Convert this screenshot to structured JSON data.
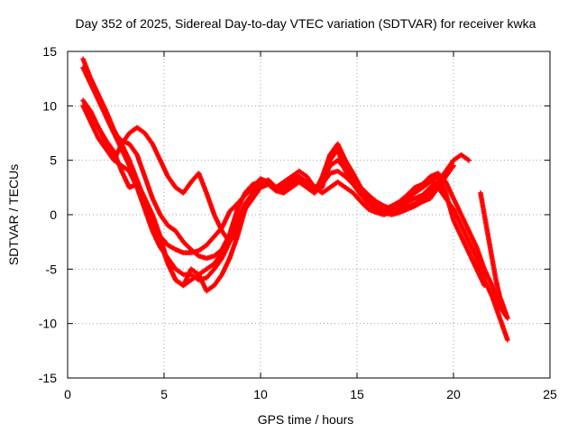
{
  "chart_data": {
    "type": "scatter",
    "title": "Day 352 of 2025, Sidereal Day-to-day VTEC variation (SDTVAR) for receiver kwka",
    "xlabel": "GPS time / hours",
    "ylabel": "SDTVAR / TECUs",
    "xlim": [
      0,
      25
    ],
    "ylim": [
      -15,
      15
    ],
    "xticks": [
      0,
      5,
      10,
      15,
      20,
      25
    ],
    "yticks": [
      -15,
      -10,
      -5,
      0,
      5,
      10,
      15
    ],
    "grid": true,
    "marker": "plus",
    "color": "#ff0000",
    "series": [
      {
        "x": [
          0.8,
          1.2,
          1.6,
          2.0,
          2.4,
          2.8,
          3.2,
          3.6,
          4.0,
          4.4,
          4.8,
          5.2,
          5.6,
          6.0,
          6.4,
          6.8,
          7.2,
          7.6,
          8.0,
          8.4,
          8.8,
          9.2,
          9.6,
          10.0,
          10.4,
          10.8,
          11.2,
          11.6,
          12.0,
          12.4,
          12.8,
          13.2,
          13.6,
          14.0,
          14.4,
          14.8,
          15.2,
          15.6,
          16.0,
          16.4,
          16.8,
          17.2,
          17.6,
          18.0,
          18.4,
          18.8,
          19.2,
          19.6,
          20.0,
          20.4,
          20.8
        ],
        "y": [
          14.3,
          12.5,
          11.0,
          9.5,
          7.8,
          6.5,
          5.0,
          3.2,
          1.2,
          -0.5,
          -2.0,
          -2.8,
          -3.2,
          -3.5,
          -3.5,
          -3.3,
          -2.8,
          -2.0,
          -1.2,
          0.3,
          1.0,
          1.8,
          2.5,
          3.3,
          3.0,
          2.5,
          3.0,
          3.5,
          4.0,
          3.5,
          2.5,
          2.0,
          2.5,
          3.0,
          2.5,
          2.0,
          1.2,
          0.5,
          0.2,
          0.0,
          0.3,
          0.5,
          0.8,
          1.0,
          1.5,
          2.0,
          3.0,
          4.0,
          5.0,
          5.5,
          5.0
        ]
      },
      {
        "x": [
          0.8,
          1.2,
          1.6,
          2.0,
          2.4,
          2.8,
          3.2,
          3.6,
          4.0,
          4.4,
          4.8,
          5.2,
          5.6,
          6.0,
          6.4,
          6.8,
          7.2,
          7.6,
          8.0,
          8.4,
          8.8,
          9.2,
          9.6,
          10.0,
          10.4,
          10.8,
          11.2,
          11.6,
          12.0,
          12.4,
          12.8,
          13.2,
          13.6,
          14.0,
          14.4,
          14.8,
          15.2,
          15.6,
          16.0,
          16.4,
          16.8,
          17.2,
          17.6,
          18.0,
          18.4,
          18.8,
          19.2,
          19.6,
          20.0
        ],
        "y": [
          13.5,
          12.0,
          10.5,
          9.0,
          7.5,
          6.8,
          6.5,
          5.5,
          3.5,
          1.5,
          0.0,
          -1.0,
          -1.5,
          -2.5,
          -3.2,
          -3.8,
          -4.0,
          -3.8,
          -3.2,
          -1.8,
          0.5,
          2.0,
          2.8,
          3.0,
          2.8,
          2.2,
          2.5,
          3.2,
          3.5,
          2.8,
          2.2,
          2.8,
          3.8,
          4.0,
          3.5,
          2.8,
          1.8,
          1.0,
          0.5,
          0.2,
          0.0,
          0.2,
          0.5,
          0.8,
          1.2,
          1.5,
          2.5,
          3.5,
          4.5
        ]
      },
      {
        "x": [
          0.8,
          1.2,
          1.6,
          2.0,
          2.4,
          2.8,
          3.2,
          3.6,
          4.0,
          4.4,
          4.8,
          5.2,
          5.6,
          6.0,
          6.4,
          6.8,
          7.2,
          7.6,
          8.0,
          8.4,
          8.8,
          9.2,
          9.6,
          10.0,
          10.4,
          10.8,
          11.2,
          11.6,
          12.0,
          12.4,
          12.8,
          13.2,
          13.6,
          14.0,
          14.4,
          14.8,
          15.2,
          15.6,
          16.0,
          16.4,
          16.8,
          17.2,
          17.6,
          18.0,
          18.4,
          18.8,
          19.2
        ],
        "y": [
          10.5,
          9.5,
          8.0,
          6.5,
          5.0,
          6.5,
          7.5,
          8.0,
          7.5,
          6.5,
          5.0,
          3.5,
          2.5,
          2.0,
          3.0,
          3.8,
          2.0,
          0.0,
          -1.5,
          -2.5,
          -1.5,
          0.5,
          2.0,
          2.8,
          3.2,
          2.5,
          2.0,
          2.8,
          3.5,
          3.0,
          2.2,
          2.5,
          5.5,
          6.5,
          5.0,
          3.8,
          2.5,
          1.8,
          1.2,
          0.8,
          0.5,
          0.8,
          1.2,
          1.5,
          1.8,
          2.5,
          3.0
        ]
      },
      {
        "x": [
          0.8,
          1.2,
          1.6,
          2.0,
          2.4,
          2.8,
          3.2,
          3.6,
          4.0,
          4.4,
          4.8,
          5.2,
          5.6,
          6.0,
          6.4,
          6.8,
          7.2,
          7.6,
          8.0,
          8.4,
          8.8,
          9.2,
          9.6,
          10.0,
          10.4,
          10.8,
          11.2,
          11.6,
          12.0,
          12.4,
          12.8,
          13.2,
          13.6,
          14.0,
          14.4,
          14.8,
          15.2,
          15.6,
          16.0,
          16.4,
          16.8,
          17.2,
          17.6,
          18.0,
          18.4,
          18.8,
          19.2,
          19.6,
          20.0,
          20.4,
          20.8,
          21.2,
          21.6
        ],
        "y": [
          10.0,
          8.5,
          7.0,
          6.0,
          5.0,
          4.5,
          4.0,
          2.5,
          0.5,
          -1.5,
          -3.0,
          -4.0,
          -5.0,
          -5.5,
          -5.5,
          -6.0,
          -5.8,
          -5.0,
          -4.0,
          -2.5,
          -1.0,
          0.5,
          1.5,
          2.5,
          2.8,
          2.2,
          2.0,
          2.5,
          3.0,
          2.5,
          2.0,
          3.0,
          5.0,
          6.0,
          4.5,
          3.5,
          2.5,
          1.5,
          0.8,
          0.5,
          0.5,
          1.0,
          1.5,
          2.0,
          2.5,
          3.0,
          3.5,
          2.0,
          -0.5,
          -2.0,
          -3.5,
          -5.0,
          -6.5
        ]
      },
      {
        "x": [
          0.8,
          1.2,
          1.6,
          2.0,
          2.4,
          2.8,
          3.2,
          3.6,
          4.0,
          4.4,
          4.8,
          5.2,
          5.6,
          6.0,
          6.4,
          6.8,
          7.2,
          7.6,
          8.0,
          8.4,
          8.8,
          9.2,
          9.6,
          10.0,
          10.4,
          10.8,
          11.2,
          11.6,
          12.0,
          12.4,
          12.8,
          13.2,
          13.6,
          14.0,
          14.4,
          14.8,
          15.2,
          15.6,
          16.0,
          16.4,
          16.8,
          17.2,
          17.6,
          18.0,
          18.4,
          18.8,
          19.2,
          19.6,
          20.0,
          20.4,
          20.8,
          21.2,
          21.6,
          22.0,
          22.4,
          22.8
        ],
        "y": [
          10.0,
          9.0,
          8.0,
          6.8,
          5.8,
          4.0,
          2.5,
          2.8,
          1.5,
          -0.5,
          -2.5,
          -4.5,
          -6.0,
          -6.5,
          -6.0,
          -5.5,
          -5.0,
          -4.5,
          -3.5,
          -2.0,
          -0.5,
          1.0,
          2.0,
          2.8,
          3.0,
          2.5,
          2.5,
          3.0,
          3.2,
          2.5,
          2.0,
          3.5,
          5.5,
          6.0,
          4.0,
          3.0,
          2.0,
          1.2,
          0.5,
          0.3,
          0.5,
          0.8,
          1.5,
          2.2,
          2.8,
          3.5,
          3.8,
          3.0,
          1.5,
          0.0,
          -1.5,
          -3.0,
          -5.0,
          -6.5,
          -8.5,
          -9.5
        ]
      },
      {
        "x": [
          2.0,
          2.4,
          2.8,
          3.2,
          3.6,
          4.0,
          4.4,
          4.8,
          5.2,
          5.6,
          6.0,
          6.4,
          6.8,
          7.2,
          7.6,
          8.0,
          8.4,
          8.8,
          9.2,
          9.6,
          10.0,
          10.4,
          10.8,
          11.2,
          11.6,
          12.0,
          12.4,
          12.8,
          13.2,
          13.6,
          14.0,
          14.4,
          14.8,
          15.2,
          15.6,
          16.0,
          16.4,
          16.8,
          17.2,
          17.6,
          18.0,
          18.4,
          18.8,
          19.2,
          19.6,
          20.0,
          20.4,
          20.8,
          21.2,
          21.6,
          22.0,
          22.4,
          22.8
        ],
        "y": [
          9.0,
          7.5,
          6.0,
          4.5,
          3.0,
          1.5,
          0.0,
          -2.0,
          -4.5,
          -6.0,
          -6.5,
          -5.0,
          -5.5,
          -7.0,
          -6.5,
          -5.5,
          -4.0,
          -2.0,
          0.5,
          2.0,
          2.5,
          2.8,
          2.5,
          3.0,
          3.5,
          3.2,
          2.8,
          2.5,
          3.0,
          4.5,
          5.0,
          4.2,
          3.2,
          2.2,
          1.5,
          0.8,
          0.5,
          0.8,
          1.2,
          1.8,
          2.5,
          2.8,
          3.2,
          2.5,
          1.5,
          0.5,
          -1.0,
          -2.5,
          -4.0,
          -6.0,
          -7.5,
          -9.5,
          -11.5
        ]
      },
      {
        "x": [
          21.4,
          21.6,
          21.8,
          22.0,
          22.2,
          22.4,
          22.6,
          22.8
        ],
        "y": [
          2.0,
          0.0,
          -2.0,
          -4.0,
          -6.0,
          -7.5,
          -8.5,
          -9.5
        ]
      }
    ]
  }
}
